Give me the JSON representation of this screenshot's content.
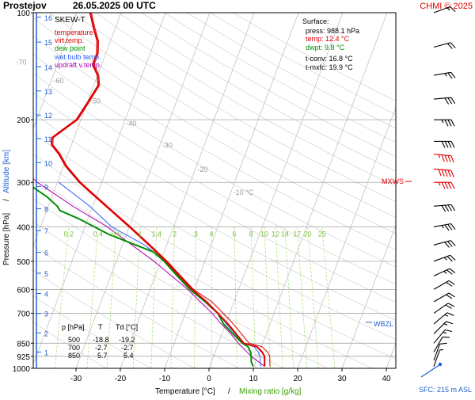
{
  "header": {
    "station": "Prostejov",
    "datetime": "26.05.2025 00 UTC",
    "copyright": "CHMI © 2025"
  },
  "legend": {
    "title": "SKEW-T",
    "items": [
      {
        "label": "temperature",
        "color": "#e00000"
      },
      {
        "label": "virt.temp.",
        "color": "#e00000"
      },
      {
        "label": "dew point",
        "color": "#009000"
      },
      {
        "label": "wet bulb temp.",
        "color": "#3060ff"
      },
      {
        "label": "updraft v.temp.",
        "color": "#b000b0"
      }
    ]
  },
  "surface": {
    "title": "Surface:",
    "press": "press: 988.1 hPa",
    "temp": "temp: 12.4 °C",
    "dwpt": "dwpt: 9.8 °C",
    "tconv": "t-conv: 16.8 °C",
    "tmxfc": "t-mxfc: 19.9 °C"
  },
  "table": {
    "headers": [
      "p [hPa]",
      "T",
      "Td [°C]"
    ],
    "rows": [
      [
        "500",
        "-18.8",
        "-19.2"
      ],
      [
        "700",
        "-2.7",
        "-2.7"
      ],
      [
        "850",
        "5.7",
        "5.4"
      ]
    ]
  },
  "markers": {
    "mxws": "MXWS",
    "wbzl": "WBZL",
    "sfc": "SFC: 215 m ASL"
  },
  "colors": {
    "temperature": "#e00000",
    "dewpoint": "#009000",
    "wetbulb": "#3060ff",
    "updraft": "#b000b0",
    "isobar": "#b0b0b0",
    "isotherm": "#bbbbbb",
    "mixing": "#a0e070",
    "axis_blue": "#2060d0"
  },
  "chart_data": {
    "type": "skew-t",
    "xlabel_temp": "Temperature [°C]",
    "xlabel_sep": "/",
    "xlabel_mix": "Mixing ratio [g/kg]",
    "ylabel_pressure": "Pressure [hPa]",
    "ylabel_sep": "/",
    "ylabel_altitude": "Altitude [km]",
    "x_ticks": [
      -30,
      -20,
      -10,
      0,
      10,
      20,
      30,
      40
    ],
    "pressure_ticks": [
      100,
      200,
      300,
      400,
      500,
      600,
      700,
      850,
      925,
      1000
    ],
    "altitude_ticks": [
      {
        "km": 1,
        "p": 900
      },
      {
        "km": 2,
        "p": 795
      },
      {
        "km": 3,
        "p": 701
      },
      {
        "km": 4,
        "p": 616
      },
      {
        "km": 5,
        "p": 540
      },
      {
        "km": 6,
        "p": 472
      },
      {
        "km": 7,
        "p": 410
      },
      {
        "km": 8,
        "p": 356
      },
      {
        "km": 9,
        "p": 308
      },
      {
        "km": 10,
        "p": 264
      },
      {
        "km": 11,
        "p": 226
      },
      {
        "km": 12,
        "p": 194
      },
      {
        "km": 13,
        "p": 166
      },
      {
        "km": 14,
        "p": 142
      },
      {
        "km": 15,
        "p": 121
      },
      {
        "km": 16,
        "p": 103
      }
    ],
    "isotherm_labels": [
      {
        "t": -80,
        "label": "-80 °C"
      },
      {
        "t": -70,
        "label": "-70"
      },
      {
        "t": -60,
        "label": "-60"
      },
      {
        "t": -50,
        "label": "-50"
      },
      {
        "t": -40,
        "label": "-40"
      },
      {
        "t": -30,
        "label": "-30"
      },
      {
        "t": -20,
        "label": "-20"
      },
      {
        "t": -10,
        "label": "-10 °C"
      }
    ],
    "mixing_ratios": [
      {
        "w": 0.2,
        "label": "0.2"
      },
      {
        "w": 0.4,
        "label": "0.4"
      },
      {
        "w": 0.6,
        "label": "0.6"
      },
      {
        "w": 1,
        "label": "1"
      },
      {
        "w": 1.4,
        "label": "1.4"
      },
      {
        "w": 2,
        "label": "2"
      },
      {
        "w": 3,
        "label": "3"
      },
      {
        "w": 4,
        "label": "4"
      },
      {
        "w": 6,
        "label": "6"
      },
      {
        "w": 8,
        "label": "8"
      },
      {
        "w": 10,
        "label": "10"
      },
      {
        "w": 12,
        "label": "12"
      },
      {
        "w": 14,
        "label": "14"
      },
      {
        "w": 17,
        "label": "17"
      },
      {
        "w": 20,
        "label": "20"
      },
      {
        "w": 25,
        "label": "25"
      }
    ],
    "temperature": [
      [
        988,
        12.4
      ],
      [
        960,
        12
      ],
      [
        925,
        11.5
      ],
      [
        900,
        10.6
      ],
      [
        870,
        9
      ],
      [
        850,
        5.7
      ],
      [
        800,
        3.2
      ],
      [
        750,
        0.5
      ],
      [
        700,
        -2.7
      ],
      [
        650,
        -6.2
      ],
      [
        600,
        -10.5
      ],
      [
        550,
        -14.5
      ],
      [
        500,
        -18.8
      ],
      [
        450,
        -24
      ],
      [
        400,
        -30
      ],
      [
        350,
        -37
      ],
      [
        300,
        -45
      ],
      [
        270,
        -49.5
      ],
      [
        250,
        -52
      ],
      [
        235,
        -54.5
      ],
      [
        225,
        -55
      ],
      [
        215,
        -53.5
      ],
      [
        200,
        -51
      ],
      [
        180,
        -50
      ],
      [
        160,
        -49
      ],
      [
        150,
        -50
      ],
      [
        140,
        -52
      ],
      [
        130,
        -52
      ],
      [
        120,
        -53
      ],
      [
        110,
        -55
      ],
      [
        100,
        -57
      ]
    ],
    "dewpoint": [
      [
        988,
        9.8
      ],
      [
        960,
        9
      ],
      [
        925,
        8.5
      ],
      [
        900,
        8
      ],
      [
        870,
        7
      ],
      [
        850,
        5.4
      ],
      [
        800,
        2.5
      ],
      [
        750,
        -0.5
      ],
      [
        700,
        -2.7
      ],
      [
        650,
        -6.5
      ],
      [
        600,
        -11
      ],
      [
        550,
        -15
      ],
      [
        500,
        -19.2
      ],
      [
        470,
        -22.5
      ],
      [
        450,
        -27
      ],
      [
        420,
        -34
      ],
      [
        380,
        -42
      ],
      [
        360,
        -47
      ],
      [
        350,
        -48
      ],
      [
        330,
        -51
      ],
      [
        310,
        -55
      ],
      [
        290,
        -59
      ],
      [
        270,
        -60.5
      ],
      [
        250,
        -61.5
      ],
      [
        230,
        -63
      ],
      [
        220,
        -68
      ],
      [
        200,
        -71
      ],
      [
        190,
        -74
      ],
      [
        175,
        -74
      ],
      [
        165,
        -77
      ],
      [
        160,
        -80
      ],
      [
        150,
        -82
      ],
      [
        140,
        -83
      ],
      [
        130,
        -83
      ],
      [
        120,
        -80
      ],
      [
        110,
        -80
      ],
      [
        100,
        -80
      ]
    ],
    "updraft": [
      [
        988,
        12.4
      ],
      [
        925,
        8.5
      ],
      [
        850,
        4.5
      ],
      [
        800,
        2
      ],
      [
        750,
        -1
      ],
      [
        700,
        -4
      ],
      [
        600,
        -11.5
      ],
      [
        500,
        -21.5
      ],
      [
        400,
        -35
      ],
      [
        350,
        -44.5
      ],
      [
        300,
        -54.5
      ],
      [
        250,
        -64
      ],
      [
        200,
        -72.5
      ],
      [
        160,
        -80.5
      ]
    ],
    "wind_barbs": [
      {
        "p": 100,
        "dir": 250,
        "spd": 15
      },
      {
        "p": 125,
        "dir": 255,
        "spd": 20
      },
      {
        "p": 150,
        "dir": 260,
        "spd": 25
      },
      {
        "p": 175,
        "dir": 265,
        "spd": 30
      },
      {
        "p": 200,
        "dir": 270,
        "spd": 35
      },
      {
        "p": 230,
        "dir": 270,
        "spd": 40
      },
      {
        "p": 250,
        "dir": 275,
        "spd": 45
      },
      {
        "p": 275,
        "dir": 275,
        "spd": 50
      },
      {
        "p": 300,
        "dir": 270,
        "spd": 45
      },
      {
        "p": 350,
        "dir": 265,
        "spd": 40
      },
      {
        "p": 400,
        "dir": 260,
        "spd": 35
      },
      {
        "p": 450,
        "dir": 255,
        "spd": 30
      },
      {
        "p": 500,
        "dir": 250,
        "spd": 25
      },
      {
        "p": 550,
        "dir": 245,
        "spd": 25
      },
      {
        "p": 600,
        "dir": 240,
        "spd": 20
      },
      {
        "p": 650,
        "dir": 240,
        "spd": 20
      },
      {
        "p": 700,
        "dir": 235,
        "spd": 20
      },
      {
        "p": 750,
        "dir": 230,
        "spd": 15
      },
      {
        "p": 800,
        "dir": 225,
        "spd": 15
      },
      {
        "p": 850,
        "dir": 220,
        "spd": 15
      },
      {
        "p": 900,
        "dir": 210,
        "spd": 10
      },
      {
        "p": 950,
        "dir": 200,
        "spd": 10
      },
      {
        "p": 988,
        "dir": 200,
        "spd": 5
      }
    ],
    "mxws_p": 290,
    "wbzl_p": 760
  }
}
